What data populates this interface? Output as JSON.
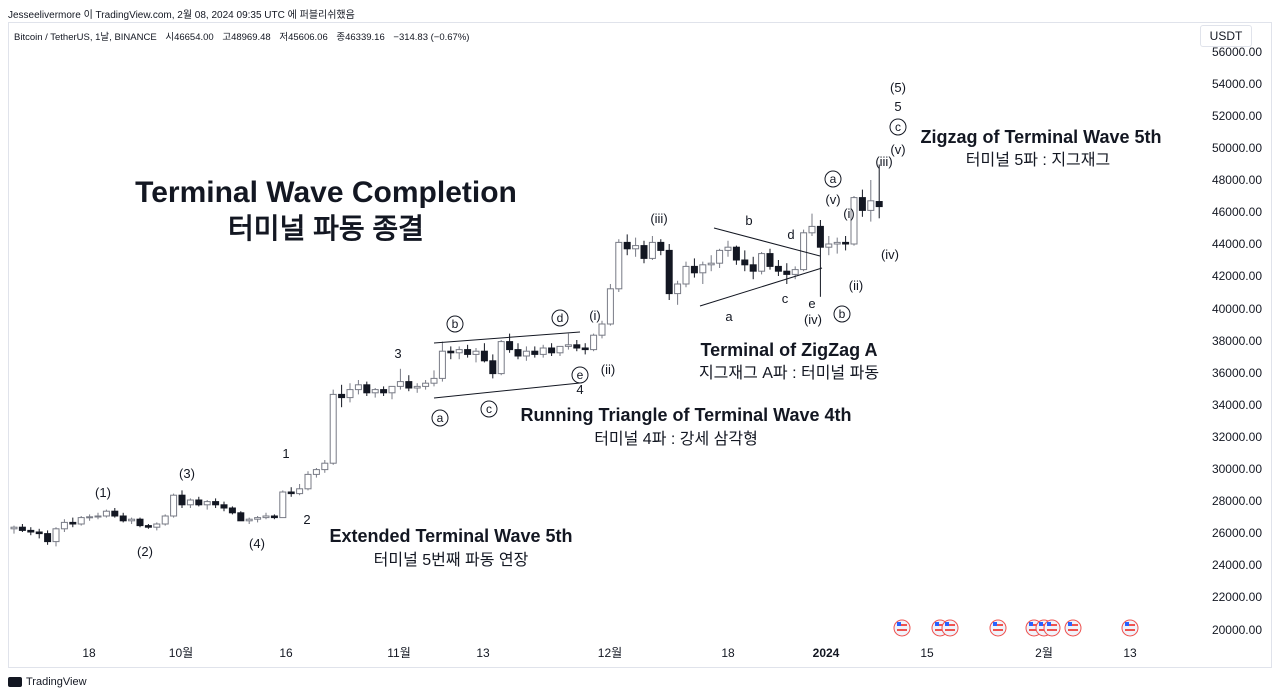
{
  "header": {
    "caption": "Jesseelivermore 이 TradingView.com, 2월 08, 2024 09:35 UTC 에 퍼블리쉬했음",
    "symbol": "Bitcoin / TetherUS, 1날, BINANCE",
    "open": "시46654.00",
    "high": "고48969.48",
    "low": "저45606.06",
    "close": "종46339.16",
    "change": "−314.83 (−0.67%)",
    "currency": "USDT"
  },
  "footer": {
    "brand": "TradingView"
  },
  "colors": {
    "up": "#ffffff",
    "down": "#131722",
    "upStroke": "#787b86",
    "grid": "#e0e3eb",
    "flag": "#ef5350"
  },
  "chart_data": {
    "type": "candlestick",
    "y_axis": {
      "ylim": [
        19000,
        57000
      ],
      "ticks": [
        "56000.00",
        "54000.00",
        "52000.00",
        "50000.00",
        "48000.00",
        "46000.00",
        "44000.00",
        "42000.00",
        "40000.00",
        "38000.00",
        "36000.00",
        "34000.00",
        "32000.00",
        "30000.00",
        "28000.00",
        "26000.00",
        "24000.00",
        "22000.00",
        "20000.00"
      ]
    },
    "x_axis": {
      "ticks": [
        {
          "label": "18",
          "bold": false
        },
        {
          "label": "10월",
          "bold": false
        },
        {
          "label": "16",
          "bold": false
        },
        {
          "label": "11월",
          "bold": false
        },
        {
          "label": "13",
          "bold": false
        },
        {
          "label": "12월",
          "bold": false
        },
        {
          "label": "18",
          "bold": false
        },
        {
          "label": "2024",
          "bold": true
        },
        {
          "label": "15",
          "bold": false
        },
        {
          "label": "2월",
          "bold": false
        },
        {
          "label": "13",
          "bold": false
        }
      ]
    },
    "candles": [
      [
        26200,
        26400,
        25900,
        26300
      ],
      [
        26300,
        26500,
        26000,
        26100
      ],
      [
        26100,
        26300,
        25800,
        26000
      ],
      [
        26000,
        26200,
        25600,
        25900
      ],
      [
        25900,
        26100,
        25200,
        25400
      ],
      [
        25400,
        26300,
        25100,
        26200
      ],
      [
        26200,
        26800,
        26000,
        26600
      ],
      [
        26600,
        26900,
        26300,
        26500
      ],
      [
        26500,
        27000,
        26400,
        26900
      ],
      [
        26900,
        27100,
        26700,
        26950
      ],
      [
        26950,
        27200,
        26800,
        27000
      ],
      [
        27000,
        27400,
        26900,
        27300
      ],
      [
        27300,
        27500,
        26900,
        27000
      ],
      [
        27000,
        27200,
        26600,
        26700
      ],
      [
        26700,
        26900,
        26500,
        26800
      ],
      [
        26800,
        26900,
        26300,
        26400
      ],
      [
        26400,
        26500,
        26200,
        26300
      ],
      [
        26300,
        26600,
        26100,
        26500
      ],
      [
        26500,
        27100,
        26400,
        27000
      ],
      [
        27000,
        28400,
        26900,
        28300
      ],
      [
        28300,
        28600,
        27500,
        27700
      ],
      [
        27700,
        28100,
        27500,
        28000
      ],
      [
        28000,
        28200,
        27600,
        27700
      ],
      [
        27700,
        28000,
        27400,
        27900
      ],
      [
        27900,
        28100,
        27500,
        27700
      ],
      [
        27700,
        27900,
        27300,
        27500
      ],
      [
        27500,
        27600,
        27100,
        27200
      ],
      [
        27200,
        27300,
        26900,
        26700
      ],
      [
        26700,
        26900,
        26500,
        26800
      ],
      [
        26800,
        27000,
        26600,
        26900
      ],
      [
        26900,
        27200,
        26800,
        27000
      ],
      [
        27000,
        27100,
        26800,
        26900
      ],
      [
        26900,
        28600,
        26900,
        28500
      ],
      [
        28500,
        28800,
        28200,
        28400
      ],
      [
        28400,
        29000,
        28300,
        28700
      ],
      [
        28700,
        29800,
        28600,
        29600
      ],
      [
        29600,
        30000,
        29400,
        29900
      ],
      [
        29900,
        30500,
        29700,
        30300
      ],
      [
        30300,
        34900,
        30200,
        34600
      ],
      [
        34600,
        35200,
        33800,
        34400
      ],
      [
        34400,
        35300,
        34100,
        34900
      ],
      [
        34900,
        35500,
        34600,
        35200
      ],
      [
        35200,
        35400,
        34500,
        34700
      ],
      [
        34700,
        35000,
        34400,
        34900
      ],
      [
        34900,
        35100,
        34500,
        34700
      ],
      [
        34700,
        35000,
        34300,
        35100
      ],
      [
        35100,
        36200,
        34900,
        35400
      ],
      [
        35400,
        35800,
        34800,
        35000
      ],
      [
        35000,
        35300,
        34700,
        35100
      ],
      [
        35100,
        35500,
        34900,
        35300
      ],
      [
        35300,
        36100,
        35100,
        35600
      ],
      [
        35600,
        37900,
        35400,
        37300
      ],
      [
        37300,
        37600,
        36800,
        37200
      ],
      [
        37200,
        37600,
        36800,
        37400
      ],
      [
        37400,
        37700,
        36900,
        37100
      ],
      [
        37100,
        37500,
        36600,
        37300
      ],
      [
        37300,
        37800,
        36600,
        36700
      ],
      [
        36700,
        37100,
        35600,
        35900
      ],
      [
        35900,
        38000,
        35800,
        37900
      ],
      [
        37900,
        38400,
        37200,
        37400
      ],
      [
        37400,
        37800,
        36800,
        37000
      ],
      [
        37000,
        37600,
        36700,
        37300
      ],
      [
        37300,
        37600,
        36900,
        37100
      ],
      [
        37100,
        37700,
        36900,
        37500
      ],
      [
        37500,
        37800,
        37000,
        37200
      ],
      [
        37200,
        37600,
        37000,
        37600
      ],
      [
        37600,
        38400,
        37400,
        37700
      ],
      [
        37700,
        38000,
        37300,
        37500
      ],
      [
        37500,
        37800,
        37100,
        37400
      ],
      [
        37400,
        38400,
        37300,
        38300
      ],
      [
        38300,
        39200,
        38100,
        39000
      ],
      [
        39000,
        41500,
        38900,
        41200
      ],
      [
        41200,
        44300,
        41000,
        44100
      ],
      [
        44100,
        44600,
        43300,
        43700
      ],
      [
        43700,
        44400,
        43200,
        43900
      ],
      [
        43900,
        44200,
        42800,
        43100
      ],
      [
        43100,
        44500,
        43000,
        44100
      ],
      [
        44100,
        44300,
        43300,
        43600
      ],
      [
        43600,
        44000,
        40500,
        40900
      ],
      [
        40900,
        41700,
        40200,
        41500
      ],
      [
        41500,
        42900,
        41300,
        42600
      ],
      [
        42600,
        43100,
        41900,
        42200
      ],
      [
        42200,
        42900,
        41500,
        42700
      ],
      [
        42700,
        43300,
        42300,
        42800
      ],
      [
        42800,
        43700,
        42500,
        43600
      ],
      [
        43600,
        44200,
        43200,
        43800
      ],
      [
        43800,
        43900,
        42700,
        43000
      ],
      [
        43000,
        43600,
        42300,
        42700
      ],
      [
        42700,
        43200,
        41800,
        42300
      ],
      [
        42300,
        43500,
        42100,
        43400
      ],
      [
        43400,
        43700,
        42400,
        42600
      ],
      [
        42600,
        43000,
        42000,
        42300
      ],
      [
        42300,
        42800,
        41500,
        42100
      ],
      [
        42100,
        42600,
        41800,
        42400
      ],
      [
        42400,
        44900,
        42300,
        44700
      ],
      [
        44700,
        45900,
        44500,
        45100
      ],
      [
        45100,
        45500,
        40700,
        43800
      ],
      [
        43800,
        44500,
        43300,
        44000
      ],
      [
        44000,
        44400,
        43400,
        44100
      ],
      [
        44100,
        44500,
        43600,
        44000
      ],
      [
        44000,
        47000,
        43900,
        46900
      ],
      [
        46900,
        47400,
        45700,
        46100
      ],
      [
        46100,
        48000,
        45400,
        46700
      ],
      [
        46654,
        48969,
        45606,
        46339
      ]
    ],
    "annotations": [
      {
        "text": "(1)"
      },
      {
        "text": "(2)"
      },
      {
        "text": "(3)"
      },
      {
        "text": "(4)"
      },
      {
        "text": "1"
      },
      {
        "text": "2"
      },
      {
        "text": "3"
      },
      {
        "text": "4"
      },
      {
        "text": "a"
      },
      {
        "text": "b"
      },
      {
        "text": "c"
      },
      {
        "text": "d"
      },
      {
        "text": "e"
      },
      {
        "text": "(i)"
      },
      {
        "text": "(ii)"
      },
      {
        "text": "(iii)"
      },
      {
        "text": "(iv)"
      },
      {
        "text": "(v)"
      },
      {
        "text": "(5)"
      },
      {
        "text": "5"
      }
    ],
    "headlines": {
      "main_en": "Terminal Wave Completion",
      "main_ko": "터미널 파동 종결",
      "t1_en": "Extended Terminal Wave 5th",
      "t1_ko": "터미널 5번째 파동 연장",
      "t2_en": "Running Triangle of Terminal Wave 4th",
      "t2_ko": "터미널 4파 : 강세 삼각형",
      "t3_en": "Terminal of ZigZag A",
      "t3_ko": "지그재그 A파 : 터미널 파동",
      "t4_en": "Zigzag of Terminal Wave 5th",
      "t4_ko": "터미널 5파 : 지그재그"
    }
  }
}
